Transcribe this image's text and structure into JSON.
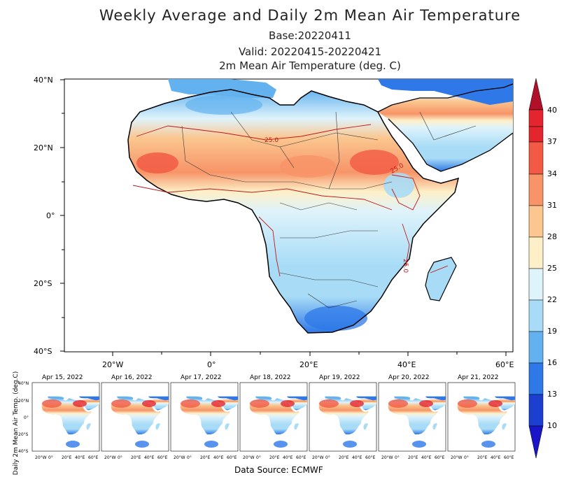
{
  "title": "Weekly Average and Daily 2m Mean Air Temperature",
  "base": "Base:20220411",
  "valid": "Valid: 20220415-20220421",
  "units": "2m Mean Air Temperature (deg. C)",
  "main_map": {
    "lat_ticks": [
      "40°N",
      "20°N",
      "0°",
      "20°S",
      "40°S"
    ],
    "lon_ticks": [
      "20°W",
      "0°",
      "20°E",
      "40°E",
      "60°E"
    ],
    "contour_labels": [
      "25.0",
      "25.0",
      "25.0"
    ]
  },
  "colorbar": {
    "levels": [
      "40",
      "37",
      "34",
      "31",
      "28",
      "25",
      "22",
      "19",
      "16",
      "13",
      "10"
    ],
    "colors": [
      "#b0102a",
      "#e3262e",
      "#f25a45",
      "#f79468",
      "#fbc68f",
      "#fdf0c8",
      "#dff3fb",
      "#a8dcf6",
      "#63b2ef",
      "#2e78e8",
      "#1d3fd0",
      "#1a16c8"
    ]
  },
  "daily_panels": {
    "axis_label": "Daily 2m Mean Air Temp. (deg.C)",
    "dates": [
      "Apr 15, 2022",
      "Apr 16, 2022",
      "Apr 17, 2022",
      "Apr 18, 2022",
      "Apr 19, 2022",
      "Apr 20, 2022",
      "Apr 21, 2022"
    ],
    "lat_ticks": [
      "40°N",
      "20°N",
      "0°",
      "20°S",
      "40°S"
    ],
    "lon_ticks": [
      "20°W",
      "0°",
      "20°E",
      "40°E",
      "60°E"
    ]
  },
  "source": "Data Source: ECMWF"
}
